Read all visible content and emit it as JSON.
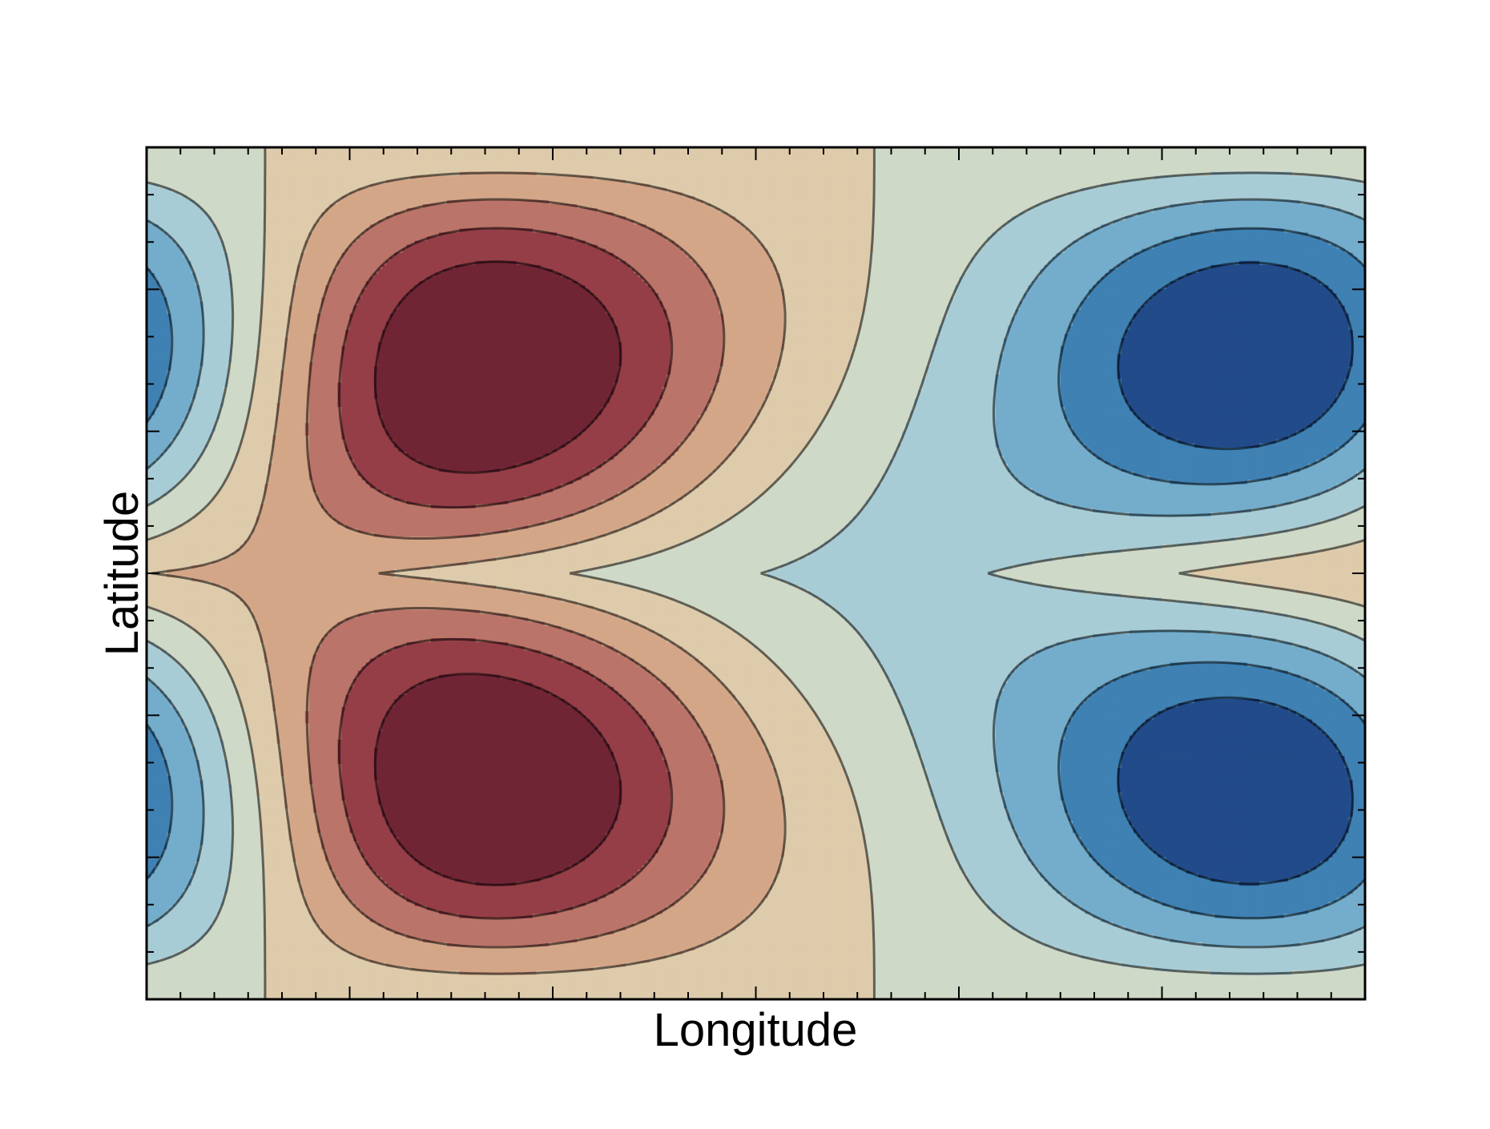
{
  "chart_data": {
    "type": "heatmap",
    "subtype": "filled-contour",
    "title": "",
    "xlabel": "Longitude",
    "ylabel": "Latitude",
    "x_tick_labels": [],
    "y_tick_labels": [],
    "grid": false,
    "legend": "none",
    "x_range": [
      0,
      360
    ],
    "y_range": [
      -90,
      90
    ],
    "levels": [
      -1.0,
      -0.8,
      -0.6,
      -0.4,
      -0.2,
      0.0,
      0.2,
      0.4,
      0.6,
      0.8,
      1.0
    ],
    "level_colors": [
      "#224b8a",
      "#3f81b3",
      "#74adcc",
      "#a8ccd6",
      "#cfd9c7",
      "#decbab",
      "#d4a688",
      "#bb7469",
      "#953e47",
      "#702535"
    ],
    "line_color": "#000000",
    "field_extrema": [
      {
        "x": 95,
        "y": 37,
        "kind": "max"
      },
      {
        "x": 95,
        "y": -37,
        "kind": "max"
      },
      {
        "x": 335,
        "y": 37,
        "kind": "min"
      },
      {
        "x": 335,
        "y": -37,
        "kind": "min"
      }
    ]
  }
}
